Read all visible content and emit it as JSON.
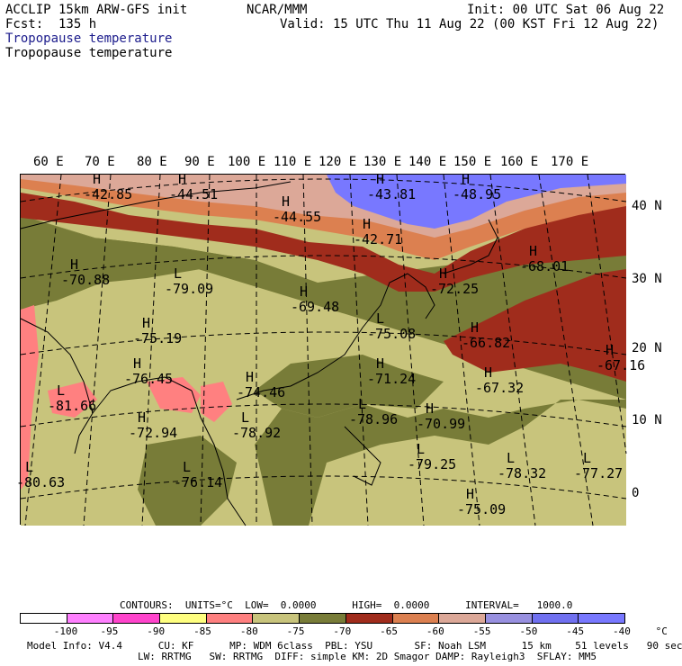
{
  "header": {
    "model": "ACCLIP 15km ARW-GFS init",
    "fcst": "Fcst:  135 h",
    "center": "NCAR/MMM",
    "init": "Init: 00 UTC Sat 06 Aug 22",
    "valid": "Valid: 15 UTC Thu 11 Aug 22 (00 KST Fri 12 Aug 22)",
    "field1": "Tropopause temperature",
    "field2": "Tropopause temperature"
  },
  "colors": {
    "field1_text": "#1c1c8c",
    "bands": [
      "#ffffff",
      "#ff80ff",
      "#ff44cc",
      "#ffff80",
      "#ff8080",
      "#c8c47c",
      "#787c38",
      "#646c30",
      "#a02c1c",
      "#dc8050",
      "#dca898",
      "#9890e0",
      "#7070f0",
      "#7878ff"
    ]
  },
  "map": {
    "lon_labels": [
      "60 E",
      "70 E",
      "80 E",
      "90 E",
      "100 E",
      "110 E",
      "120 E",
      "130 E",
      "140 E",
      "150 E",
      "160 E",
      "170 E"
    ],
    "lat_labels": [
      "40 N",
      "30 N",
      "20 N",
      "10 N",
      "0"
    ],
    "center_marks": [
      {
        "label": "H",
        "value": "-42.85"
      },
      {
        "label": "H",
        "value": "-44.51"
      },
      {
        "label": "H",
        "value": "-44.55"
      },
      {
        "label": "H",
        "value": "-43.81"
      },
      {
        "label": "H",
        "value": "-48.95"
      },
      {
        "label": "H",
        "value": "-42.71"
      },
      {
        "label": "H",
        "value": "-70.88"
      },
      {
        "label": "L",
        "value": "-79.09"
      },
      {
        "label": "H",
        "value": "-69.48"
      },
      {
        "label": "H",
        "value": "-72.25"
      },
      {
        "label": "H",
        "value": "-68.01"
      },
      {
        "label": "L",
        "value": "-75.08"
      },
      {
        "label": "H",
        "value": "-66.82"
      },
      {
        "label": "H",
        "value": "-75.19"
      },
      {
        "label": "H",
        "value": "-76.45"
      },
      {
        "label": "H",
        "value": "-74.46"
      },
      {
        "label": "H",
        "value": "-71.24"
      },
      {
        "label": "H",
        "value": "-67.32"
      },
      {
        "label": "H",
        "value": "-67.16"
      },
      {
        "label": "L",
        "value": "-81.66"
      },
      {
        "label": "H",
        "value": "-72.94"
      },
      {
        "label": "L",
        "value": "-78.92"
      },
      {
        "label": "L",
        "value": "-78.96"
      },
      {
        "label": "H",
        "value": "-70.99"
      },
      {
        "label": "L",
        "value": "-79.25"
      },
      {
        "label": "L",
        "value": "-78.32"
      },
      {
        "label": "L",
        "value": "-77.27"
      },
      {
        "label": "L",
        "value": "-76.14"
      },
      {
        "label": "H",
        "value": "-75.09"
      },
      {
        "label": "L",
        "value": "-80.63"
      }
    ]
  },
  "footer": {
    "contours": "CONTOURS:  UNITS=°C  LOW=  0.0000      HIGH=  0.0000      INTERVAL=   1000.0",
    "colorbar_labels": [
      "-100",
      "-95",
      "-90",
      "-85",
      "-80",
      "-75",
      "-70",
      "-65",
      "-60",
      "-55",
      "-50",
      "-45",
      "-40",
      "°C"
    ],
    "info1": "Model Info: V4.4      CU: KF      MP: WDM 6class  PBL: YSU       SF: Noah LSM      15 km    51 levels   90 sec",
    "info2": "LW: RRTMG   SW: RRTMG  DIFF: simple KM: 2D Smagor DAMP: Rayleigh3  SFLAY: MM5"
  }
}
